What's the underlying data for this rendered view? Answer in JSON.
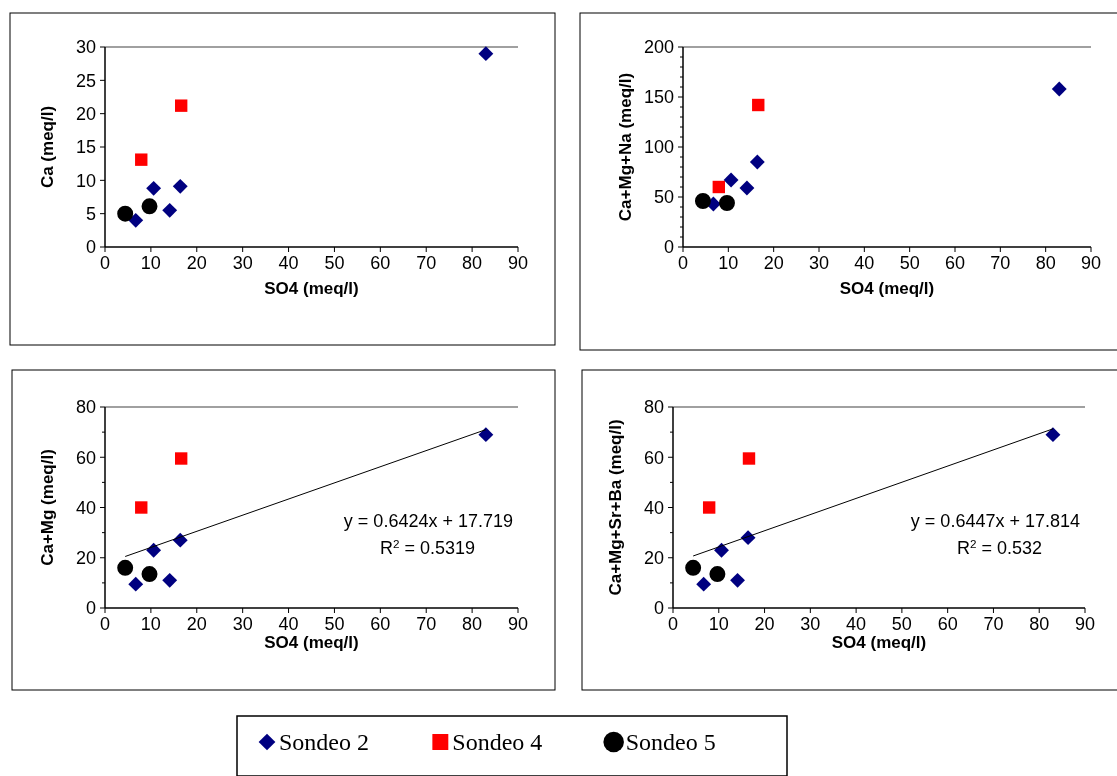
{
  "chart_data": [
    {
      "type": "scatter",
      "xlabel": "SO4 (meq/l)",
      "ylabel": "Ca (meq/l)",
      "xlim": [
        0,
        90
      ],
      "xticks": [
        0,
        10,
        20,
        30,
        40,
        50,
        60,
        70,
        80,
        90
      ],
      "ylim": [
        0,
        30
      ],
      "yticks": [
        0,
        5,
        10,
        15,
        20,
        25,
        30
      ],
      "legend": "bottom",
      "series": [
        {
          "name": "Sondeo 2",
          "color": "#000080",
          "marker": "diamond",
          "x": [
            6.7,
            10.6,
            14.1,
            16.4,
            83
          ],
          "values": [
            4,
            8.8,
            5.5,
            9.1,
            29
          ]
        },
        {
          "name": "Sondeo 4",
          "color": "#ff0000",
          "marker": "square",
          "x": [
            7.9,
            16.6
          ],
          "values": [
            13.1,
            21.2
          ]
        },
        {
          "name": "Sondeo 5",
          "color": "#000000",
          "marker": "circle",
          "x": [
            4.4,
            9.7
          ],
          "values": [
            5,
            6.1
          ]
        }
      ]
    },
    {
      "type": "scatter",
      "xlabel": "SO4 (meq/l)",
      "ylabel": "Ca+Mg+Na (meq/l)",
      "xlim": [
        0,
        90
      ],
      "xticks": [
        0,
        10,
        20,
        30,
        40,
        50,
        60,
        70,
        80,
        90
      ],
      "ylim": [
        0,
        200
      ],
      "yticks": [
        0,
        {
          "value": 10,
          "label": null
        },
        {
          "value": 20,
          "label": null
        },
        {
          "value": 30,
          "label": null
        },
        {
          "value": 40,
          "label": null
        },
        50,
        {
          "value": 60,
          "label": null
        },
        {
          "value": 70,
          "label": null
        },
        {
          "value": 80,
          "label": null
        },
        {
          "value": 90,
          "label": null
        },
        100,
        {
          "value": 110,
          "label": null
        },
        {
          "value": 120,
          "label": null
        },
        {
          "value": 130,
          "label": null
        },
        {
          "value": 140,
          "label": null
        },
        150,
        {
          "value": 160,
          "label": null
        },
        {
          "value": 170,
          "label": null
        },
        {
          "value": 180,
          "label": null
        },
        {
          "value": 190,
          "label": null
        },
        200
      ],
      "series": [
        {
          "color": "#000080",
          "marker": "diamond",
          "x": [
            6.7,
            10.6,
            14.1,
            16.4,
            83
          ],
          "values": [
            43,
            67,
            59,
            85,
            158
          ]
        },
        {
          "color": "#ff0000",
          "marker": "square",
          "x": [
            7.9,
            16.6
          ],
          "values": [
            60,
            142
          ]
        },
        {
          "color": "#000000",
          "marker": "circle",
          "x": [
            4.4,
            9.7
          ],
          "values": [
            46,
            44
          ]
        }
      ]
    },
    {
      "type": "scatter",
      "xlabel": "SO4 (meq/l)",
      "ylabel": "Ca+Mg (meq/l)",
      "xlim": [
        0,
        90
      ],
      "xticks": [
        0,
        10,
        20,
        30,
        40,
        50,
        60,
        70,
        80,
        90
      ],
      "ylim": [
        0,
        80
      ],
      "yticks": [
        0,
        {
          "value": 10,
          "label": null
        },
        20,
        {
          "value": 30,
          "label": null
        },
        40,
        {
          "value": 50,
          "label": null
        },
        60,
        {
          "value": 70,
          "label": null
        },
        80
      ],
      "annotations": [
        "y = 0.6424x + 17.719",
        "R$^{2}$ = 0.5319"
      ],
      "series": [
        {
          "color": "#000080",
          "marker": "diamond",
          "x": [
            6.7,
            10.6,
            14.1,
            16.4,
            83
          ],
          "values": [
            9.5,
            23,
            11,
            27,
            69
          ]
        },
        {
          "color": "#ff0000",
          "marker": "square",
          "x": [
            7.9,
            16.6
          ],
          "values": [
            40,
            59.5
          ]
        },
        {
          "color": "#000000",
          "marker": "circle",
          "x": [
            4.4,
            9.7
          ],
          "values": [
            16,
            13.5
          ]
        },
        {
          "type": "line",
          "color": "#000000",
          "line_style": "solid",
          "x": [
            4.4,
            83
          ],
          "values": [
            20.5,
            71.0
          ]
        }
      ]
    },
    {
      "type": "scatter",
      "xlabel": "SO4 (meq/l)",
      "ylabel": "Ca+Mg+Sr+Ba (meq/l)",
      "xlim": [
        0,
        90
      ],
      "xticks": [
        0,
        10,
        20,
        30,
        40,
        50,
        60,
        70,
        80,
        90
      ],
      "ylim": [
        0,
        80
      ],
      "yticks": [
        0,
        {
          "value": 10,
          "label": null
        },
        20,
        {
          "value": 30,
          "label": null
        },
        40,
        {
          "value": 50,
          "label": null
        },
        60,
        {
          "value": 70,
          "label": null
        },
        80
      ],
      "annotations": [
        "y = 0.6447x + 17.814",
        "R$^{2}$ = 0.532"
      ],
      "series": [
        {
          "color": "#000080",
          "marker": "diamond",
          "x": [
            6.7,
            10.6,
            14.1,
            16.4,
            83
          ],
          "values": [
            9.5,
            23,
            11,
            28,
            69
          ]
        },
        {
          "color": "#ff0000",
          "marker": "square",
          "x": [
            7.9,
            16.6
          ],
          "values": [
            40,
            59.5
          ]
        },
        {
          "color": "#000000",
          "marker": "circle",
          "x": [
            4.4,
            9.7
          ],
          "values": [
            16,
            13.5
          ]
        },
        {
          "type": "line",
          "color": "#000000",
          "line_style": "solid",
          "x": [
            4.4,
            83
          ],
          "values": [
            20.7,
            71.3
          ]
        }
      ]
    }
  ]
}
